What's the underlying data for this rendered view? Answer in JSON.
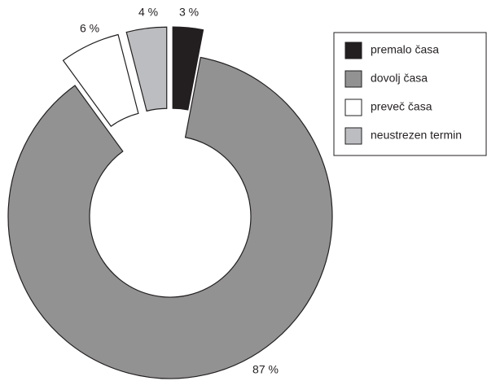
{
  "chart_data": {
    "type": "pie",
    "categories": [
      "premalo časa",
      "dovolj časa",
      "preveč časa",
      "neustrezen termin"
    ],
    "values": [
      3,
      87,
      6,
      4
    ],
    "value_labels": [
      "3 %",
      "87 %",
      "6 %",
      "4 %"
    ],
    "colors": [
      "#231f20",
      "#929292",
      "#ffffff",
      "#bcbdc0"
    ],
    "donut": true,
    "legend": "upper right"
  }
}
